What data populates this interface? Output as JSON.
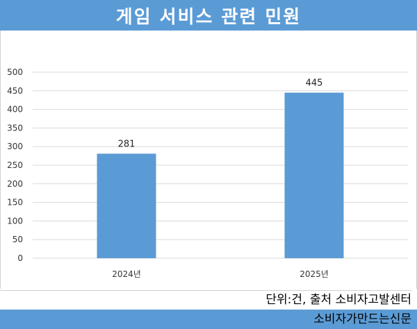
{
  "header": {
    "title": "게임 서비스 관련 민원"
  },
  "chart_data": {
    "type": "bar",
    "categories": [
      "2024년",
      "2025년"
    ],
    "values": [
      281,
      445
    ],
    "title": "게임 서비스 관련 민원",
    "xlabel": "",
    "ylabel": "",
    "ylim": [
      0,
      500
    ],
    "yticks": [
      0,
      50,
      100,
      150,
      200,
      250,
      300,
      350,
      400,
      450,
      500
    ],
    "grid": true,
    "data_labels": true,
    "bar_color": "#5b9bd5"
  },
  "footer": {
    "source": "단위:건, 출처 소비자고발센터",
    "brand": "소비자가만드는신문"
  },
  "colors": {
    "accent": "#5b9bd5",
    "grid": "#d9d9d9"
  }
}
